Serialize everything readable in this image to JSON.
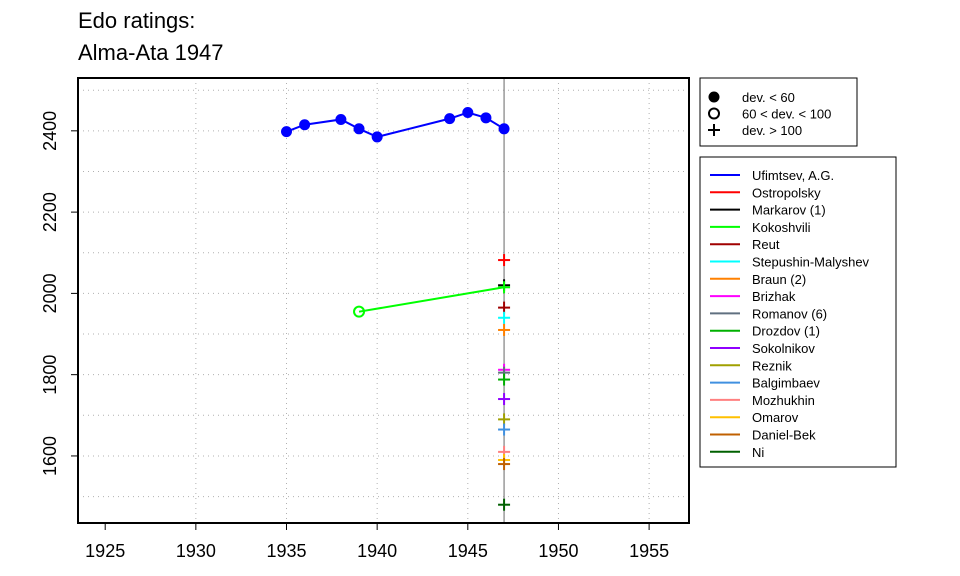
{
  "chart_data": {
    "type": "line",
    "title": [
      "Edo ratings:",
      "Alma-Ata 1947"
    ],
    "xlabel": "",
    "ylabel": "",
    "xlim": [
      1923.5,
      1957.2
    ],
    "ylim": [
      1435,
      2530
    ],
    "x_ticks": [
      1925,
      1930,
      1935,
      1940,
      1945,
      1950,
      1955
    ],
    "y_ticks": [
      1600,
      1800,
      2000,
      2200,
      2400
    ],
    "grid_x": [
      1930,
      1935,
      1940,
      1945,
      1950,
      1955
    ],
    "grid_y": [
      1500,
      1600,
      1700,
      1800,
      1900,
      2000,
      2100,
      2200,
      2300,
      2400,
      2500
    ],
    "grid": true,
    "vertical_line_x": 1947,
    "marker_legend": {
      "placement": "top-right",
      "entries": [
        {
          "symbol": "filled-circle",
          "label": "dev. < 60"
        },
        {
          "symbol": "open-circle",
          "label": "60 < dev. < 100"
        },
        {
          "symbol": "plus",
          "label": "dev. > 100"
        }
      ]
    },
    "series": [
      {
        "name": "Ufimtsev, A.G.",
        "color": "#0000ff",
        "points": [
          {
            "x": 1935,
            "y": 2398,
            "marker": "filled-circle"
          },
          {
            "x": 1936,
            "y": 2415,
            "marker": "filled-circle"
          },
          {
            "x": 1938,
            "y": 2428,
            "marker": "filled-circle"
          },
          {
            "x": 1939,
            "y": 2405,
            "marker": "filled-circle"
          },
          {
            "x": 1940,
            "y": 2385,
            "marker": "filled-circle"
          },
          {
            "x": 1944,
            "y": 2430,
            "marker": "filled-circle"
          },
          {
            "x": 1945,
            "y": 2445,
            "marker": "filled-circle"
          },
          {
            "x": 1946,
            "y": 2432,
            "marker": "filled-circle"
          },
          {
            "x": 1947,
            "y": 2405,
            "marker": "filled-circle"
          }
        ]
      },
      {
        "name": "Ostropolsky",
        "color": "#ff0000",
        "points": [
          {
            "x": 1947,
            "y": 2082,
            "marker": "plus"
          }
        ]
      },
      {
        "name": "Markarov (1)",
        "color": "#000000",
        "points": [
          {
            "x": 1947,
            "y": 2020,
            "marker": "plus"
          }
        ]
      },
      {
        "name": "Kokoshvili",
        "color": "#00ff00",
        "points": [
          {
            "x": 1939,
            "y": 1955,
            "marker": "open-circle"
          },
          {
            "x": 1947,
            "y": 2015,
            "marker": "plus"
          }
        ]
      },
      {
        "name": "Reut",
        "color": "#a00000",
        "points": [
          {
            "x": 1947,
            "y": 1965,
            "marker": "plus"
          }
        ]
      },
      {
        "name": "Stepushin-Malyshev",
        "color": "#00ffff",
        "points": [
          {
            "x": 1947,
            "y": 1940,
            "marker": "plus"
          }
        ]
      },
      {
        "name": "Braun (2)",
        "color": "#ff8000",
        "points": [
          {
            "x": 1947,
            "y": 1910,
            "marker": "plus"
          }
        ]
      },
      {
        "name": "Brizhak",
        "color": "#ff00ff",
        "points": [
          {
            "x": 1947,
            "y": 1812,
            "marker": "plus"
          }
        ]
      },
      {
        "name": "Romanov (6)",
        "color": "#607080",
        "points": [
          {
            "x": 1947,
            "y": 1805,
            "marker": "plus"
          }
        ]
      },
      {
        "name": "Drozdov (1)",
        "color": "#00b000",
        "points": [
          {
            "x": 1947,
            "y": 1788,
            "marker": "plus"
          }
        ]
      },
      {
        "name": "Sokolnikov",
        "color": "#9000ff",
        "points": [
          {
            "x": 1947,
            "y": 1740,
            "marker": "plus"
          }
        ]
      },
      {
        "name": "Reznik",
        "color": "#a0a000",
        "points": [
          {
            "x": 1947,
            "y": 1690,
            "marker": "plus"
          }
        ]
      },
      {
        "name": "Balgimbaev",
        "color": "#4090e0",
        "points": [
          {
            "x": 1947,
            "y": 1665,
            "marker": "plus"
          }
        ]
      },
      {
        "name": "Mozhukhin",
        "color": "#ff8080",
        "points": [
          {
            "x": 1947,
            "y": 1610,
            "marker": "plus"
          }
        ]
      },
      {
        "name": "Omarov",
        "color": "#ffc000",
        "points": [
          {
            "x": 1947,
            "y": 1590,
            "marker": "plus"
          }
        ]
      },
      {
        "name": "Daniel-Bek",
        "color": "#c06000",
        "points": [
          {
            "x": 1947,
            "y": 1580,
            "marker": "plus"
          }
        ]
      },
      {
        "name": "Ni",
        "color": "#006000",
        "points": [
          {
            "x": 1947,
            "y": 1480,
            "marker": "plus"
          }
        ]
      }
    ]
  }
}
